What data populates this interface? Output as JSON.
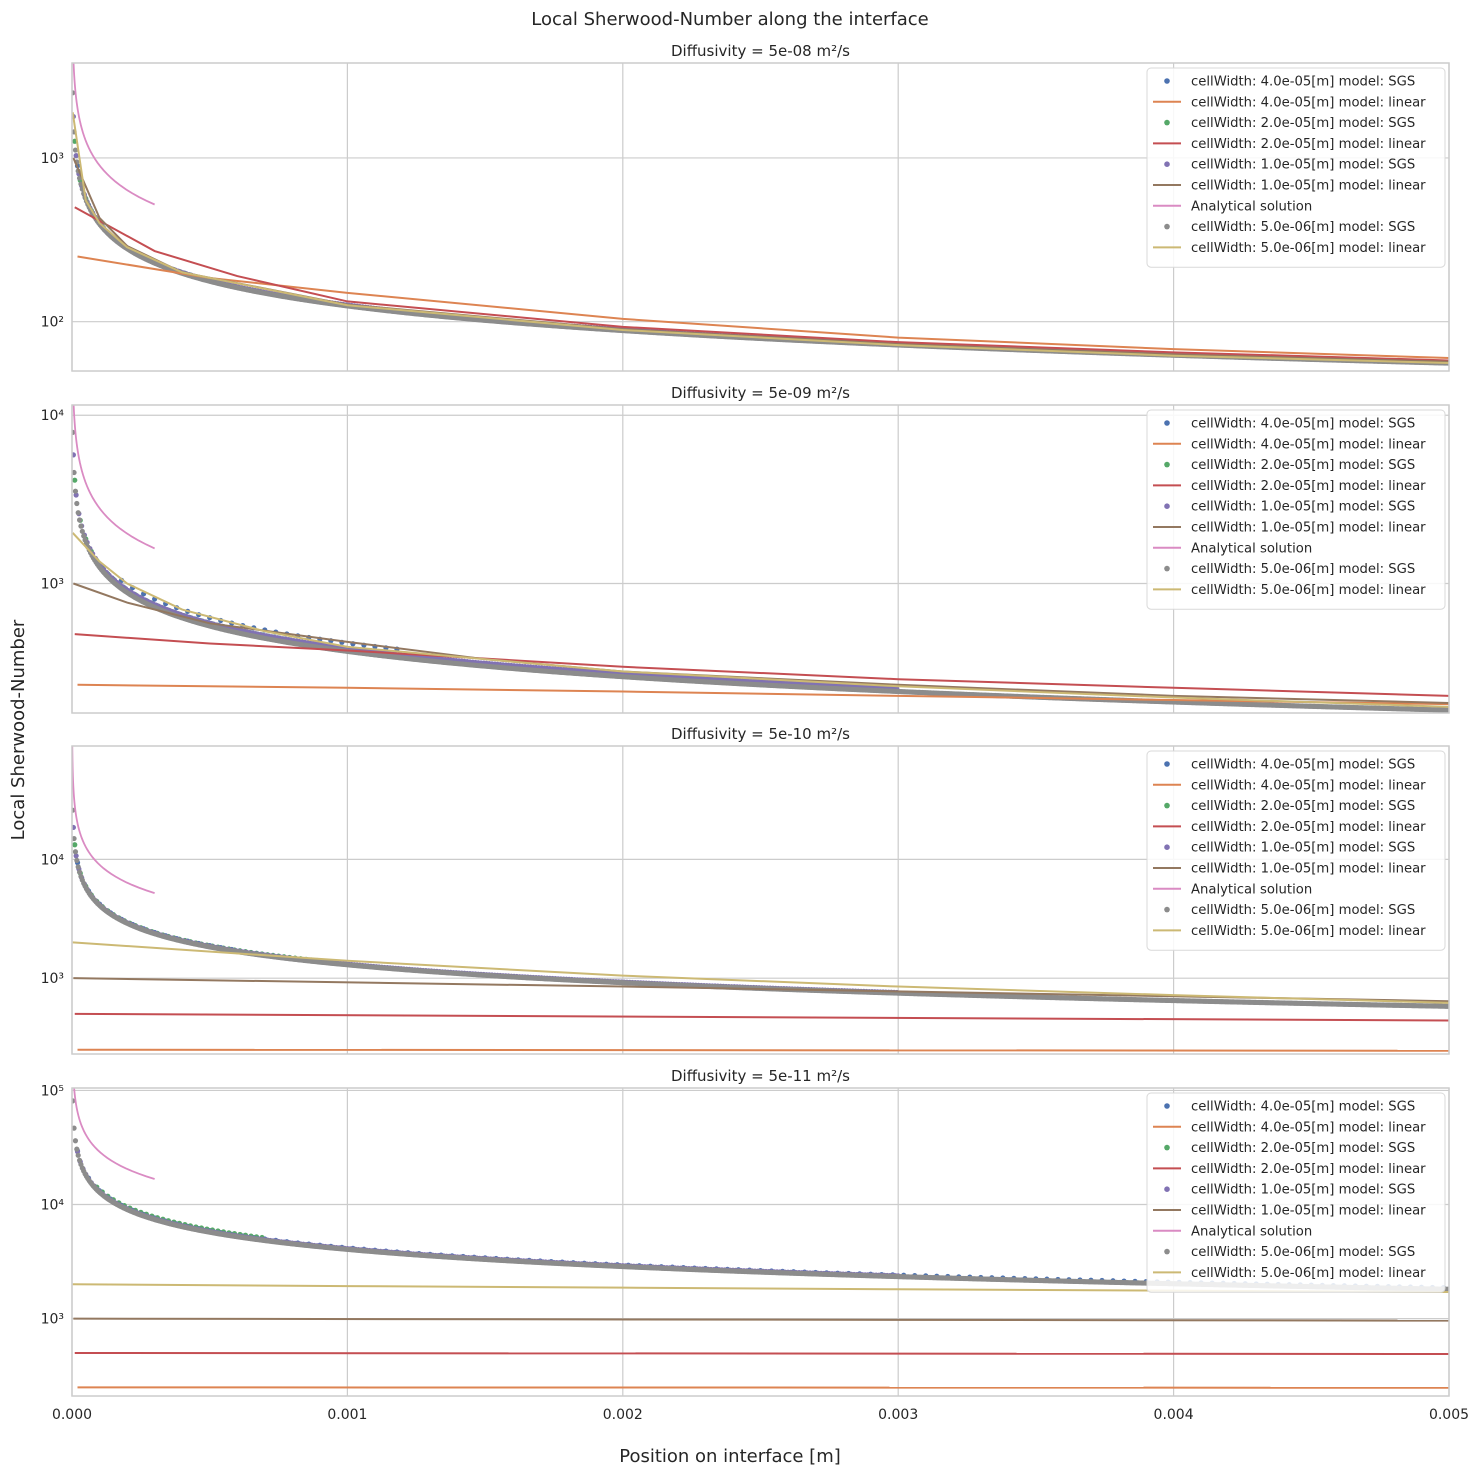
{
  "figure": {
    "title": "Local Sherwood-Number along the interface",
    "xlabel": "Position on interface [m]",
    "ylabel": "Local Sherwood-Number"
  },
  "colors": {
    "blue": "#4c72b0",
    "orange": "#dd8452",
    "green": "#55a868",
    "red": "#c44e52",
    "purple": "#8172b3",
    "brown": "#937860",
    "pink": "#da8bc3",
    "gray": "#8c8c8c",
    "olive": "#ccb974",
    "grid": "#cccccc",
    "axes": "#cccccc"
  },
  "legend_entries": [
    {
      "label": "cellWidth: 4.0e-05[m] model: SGS",
      "kind": "marker",
      "color": "#4c72b0"
    },
    {
      "label": "cellWidth: 4.0e-05[m] model: linear",
      "kind": "line",
      "color": "#dd8452"
    },
    {
      "label": "cellWidth: 2.0e-05[m] model: SGS",
      "kind": "marker",
      "color": "#55a868"
    },
    {
      "label": "cellWidth: 2.0e-05[m] model: linear",
      "kind": "line",
      "color": "#c44e52"
    },
    {
      "label": "cellWidth: 1.0e-05[m] model: SGS",
      "kind": "marker",
      "color": "#8172b3"
    },
    {
      "label": "cellWidth: 1.0e-05[m] model: linear",
      "kind": "line",
      "color": "#937860"
    },
    {
      "label": "Analytical solution",
      "kind": "line",
      "color": "#da8bc3"
    },
    {
      "label": "cellWidth: 5.0e-06[m] model: SGS",
      "kind": "marker",
      "color": "#8c8c8c"
    },
    {
      "label": "cellWidth: 5.0e-06[m] model: linear",
      "kind": "line",
      "color": "#ccb974"
    }
  ],
  "x_ticks": [
    {
      "value": 0.0,
      "label": "0.000"
    },
    {
      "value": 0.001,
      "label": "0.001"
    },
    {
      "value": 0.002,
      "label": "0.002"
    },
    {
      "value": 0.003,
      "label": "0.003"
    },
    {
      "value": 0.004,
      "label": "0.004"
    },
    {
      "value": 0.005,
      "label": "0.005"
    }
  ],
  "chart_data": [
    {
      "type": "line",
      "title": "Diffusivity = 5e-08 m²/s",
      "xlim": [
        0,
        0.005
      ],
      "ylim": [
        50,
        3800
      ],
      "yscale": "log",
      "y_ticks": [
        {
          "value": 100,
          "label": "10²"
        },
        {
          "value": 1000,
          "label": "10³"
        }
      ],
      "legend": "top-right",
      "analytic": {
        "k": 9.0,
        "xmin": 5e-07,
        "xmax": 0.0003
      },
      "markers": [
        {
          "name": "cellWidth: 4.0e-05[m] model: SGS",
          "color": "#4c72b0",
          "k": 4.0,
          "xmin": 2e-05,
          "step": 4e-05,
          "xmax": 0.0003
        },
        {
          "name": "cellWidth: 2.0e-05[m] model: SGS",
          "color": "#55a868",
          "k": 4.0,
          "xmin": 1e-05,
          "step": 2e-05,
          "xmax": 0.0006
        },
        {
          "name": "cellWidth: 1.0e-05[m] model: SGS",
          "color": "#8172b3",
          "k": 4.0,
          "xmin": 5e-06,
          "step": 1e-05,
          "xmax": 0.003
        },
        {
          "name": "cellWidth: 5.0e-06[m] model: SGS",
          "color": "#8c8c8c",
          "k": 3.95,
          "xmin": 2.5e-06,
          "step": 5e-06,
          "xmax": 0.005
        }
      ],
      "lines": [
        {
          "name": "cellWidth: 4.0e-05[m] model: linear",
          "color": "#dd8452",
          "x": [
            2e-05,
            0.0005,
            0.001,
            0.002,
            0.003,
            0.004,
            0.005
          ],
          "y": [
            250,
            185,
            150,
            104,
            80,
            68,
            60
          ]
        },
        {
          "name": "cellWidth: 2.0e-05[m] model: linear",
          "color": "#c44e52",
          "x": [
            1e-05,
            0.0003,
            0.0006,
            0.001,
            0.002,
            0.003,
            0.004,
            0.005
          ],
          "y": [
            500,
            270,
            190,
            133,
            93,
            75,
            65,
            58
          ]
        },
        {
          "name": "cellWidth: 1.0e-05[m] model: linear",
          "color": "#937860",
          "x": [
            5e-06,
            0.0001,
            0.0002,
            0.0004,
            0.001,
            0.002,
            0.003,
            0.004,
            0.005
          ],
          "y": [
            1000,
            430,
            290,
            200,
            127,
            90,
            73,
            63,
            57
          ]
        },
        {
          "name": "cellWidth: 5.0e-06[m] model: linear",
          "color": "#ccb974",
          "x": [
            2.5e-06,
            5e-05,
            0.0001,
            0.0002,
            0.0004,
            0.001,
            0.002,
            0.003,
            0.004,
            0.005
          ],
          "y": [
            1900,
            550,
            400,
            285,
            200,
            126,
            89,
            72,
            62,
            56
          ]
        }
      ]
    },
    {
      "type": "line",
      "title": "Diffusivity = 5e-09 m²/s",
      "xlim": [
        0,
        0.005
      ],
      "ylim": [
        170,
        11500
      ],
      "yscale": "log",
      "y_ticks": [
        {
          "value": 1000,
          "label": "10³"
        },
        {
          "value": 10000,
          "label": "10⁴"
        }
      ],
      "legend": "top-right",
      "analytic": {
        "k": 28.0,
        "xmin": 5e-07,
        "xmax": 0.0003
      },
      "markers": [
        {
          "name": "cellWidth: 4.0e-05[m] model: SGS",
          "color": "#4c72b0",
          "k": 14.0,
          "xmin": 0.00018,
          "step": 4e-05,
          "xmax": 0.0012
        },
        {
          "name": "cellWidth: 2.0e-05[m] model: SGS",
          "color": "#55a868",
          "k": 13.0,
          "xmin": 1e-05,
          "step": 2e-05,
          "xmax": 0.0008
        },
        {
          "name": "cellWidth: 1.0e-05[m] model: SGS",
          "color": "#8172b3",
          "k": 13.0,
          "xmin": 5e-06,
          "step": 1e-05,
          "xmax": 0.003
        },
        {
          "name": "cellWidth: 5.0e-06[m] model: SGS",
          "color": "#8c8c8c",
          "k": 12.5,
          "xmin": 2.5e-06,
          "step": 5e-06,
          "xmax": 0.005
        }
      ],
      "lines": [
        {
          "name": "cellWidth: 4.0e-05[m] model: linear",
          "color": "#dd8452",
          "x": [
            2e-05,
            0.001,
            0.002,
            0.003,
            0.004,
            0.005
          ],
          "y": [
            250,
            240,
            228,
            215,
            203,
            192
          ]
        },
        {
          "name": "cellWidth: 2.0e-05[m] model: linear",
          "color": "#c44e52",
          "x": [
            1e-05,
            0.0005,
            0.001,
            0.002,
            0.003,
            0.004,
            0.005
          ],
          "y": [
            500,
            440,
            400,
            320,
            270,
            240,
            215
          ]
        },
        {
          "name": "cellWidth: 1.0e-05[m] model: linear",
          "color": "#937860",
          "x": [
            5e-06,
            0.0002,
            0.0005,
            0.001,
            0.0015,
            0.002,
            0.003,
            0.004,
            0.005
          ],
          "y": [
            1000,
            770,
            580,
            450,
            355,
            300,
            250,
            215,
            195
          ]
        },
        {
          "name": "cellWidth: 5.0e-06[m] model: linear",
          "color": "#ccb974",
          "x": [
            2.5e-06,
            0.0001,
            0.0002,
            0.0004,
            0.0007,
            0.001,
            0.002,
            0.003,
            0.004,
            0.005
          ],
          "y": [
            2000,
            1350,
            1000,
            700,
            520,
            420,
            300,
            245,
            210,
            185
          ]
        }
      ]
    },
    {
      "type": "line",
      "title": "Diffusivity = 5e-10 m²/s",
      "xlim": [
        0,
        0.005
      ],
      "ylim": [
        230,
        90000
      ],
      "yscale": "log",
      "y_ticks": [
        {
          "value": 1000,
          "label": "10³"
        },
        {
          "value": 10000,
          "label": "10⁴"
        }
      ],
      "legend": "top-right",
      "analytic": {
        "k": 90.0,
        "xmin": 5e-07,
        "xmax": 0.0003
      },
      "markers": [
        {
          "name": "cellWidth: 4.0e-05[m] model: SGS",
          "color": "#4c72b0",
          "k": 42.0,
          "xmin": 2e-05,
          "step": 4e-05,
          "xmax": 0.0006
        },
        {
          "name": "cellWidth: 2.0e-05[m] model: SGS",
          "color": "#55a868",
          "k": 42.0,
          "xmin": 1e-05,
          "step": 2e-05,
          "xmax": 0.0009
        },
        {
          "name": "cellWidth: 1.0e-05[m] model: SGS",
          "color": "#8172b3",
          "k": 41.5,
          "xmin": 5e-06,
          "step": 1e-05,
          "xmax": 0.003
        },
        {
          "name": "cellWidth: 5.0e-06[m] model: SGS",
          "color": "#8c8c8c",
          "k": 41.0,
          "xmin": 2.5e-06,
          "step": 5e-06,
          "xmax": 0.005
        }
      ],
      "lines": [
        {
          "name": "cellWidth: 4.0e-05[m] model: linear",
          "color": "#dd8452",
          "x": [
            2e-05,
            0.005
          ],
          "y": [
            250,
            245
          ]
        },
        {
          "name": "cellWidth: 2.0e-05[m] model: linear",
          "color": "#c44e52",
          "x": [
            1e-05,
            0.005
          ],
          "y": [
            500,
            440
          ]
        },
        {
          "name": "cellWidth: 1.0e-05[m] model: linear",
          "color": "#937860",
          "x": [
            5e-06,
            0.002,
            0.005
          ],
          "y": [
            1000,
            850,
            640
          ]
        },
        {
          "name": "cellWidth: 5.0e-06[m] model: linear",
          "color": "#ccb974",
          "x": [
            2.5e-06,
            0.001,
            0.002,
            0.003,
            0.004,
            0.005
          ],
          "y": [
            2000,
            1400,
            1050,
            850,
            720,
            620
          ]
        }
      ]
    },
    {
      "type": "line",
      "title": "Diffusivity = 5e-11 m²/s",
      "xlim": [
        0,
        0.005
      ],
      "ylim": [
        210,
        105000
      ],
      "yscale": "log",
      "y_ticks": [
        {
          "value": 1000,
          "label": "10³"
        },
        {
          "value": 10000,
          "label": "10⁴"
        },
        {
          "value": 100000,
          "label": "10⁵"
        }
      ],
      "legend": "top-right",
      "analytic": {
        "k": 290.0,
        "xmin": 5e-07,
        "xmax": 0.0003
      },
      "markers": [
        {
          "name": "cellWidth: 4.0e-05[m] model: SGS",
          "color": "#4c72b0",
          "k": 132.0,
          "xmin": 2e-05,
          "step": 4e-05,
          "xmax": 0.005
        },
        {
          "name": "cellWidth: 2.0e-05[m] model: SGS",
          "color": "#55a868",
          "k": 135.0,
          "xmin": 9e-05,
          "step": 2e-05,
          "xmax": 0.0007
        },
        {
          "name": "cellWidth: 1.0e-05[m] model: SGS",
          "color": "#8172b3",
          "k": 130.0,
          "xmin": 2e-05,
          "step": 1e-05,
          "xmax": 0.003
        },
        {
          "name": "cellWidth: 5.0e-06[m] model: SGS",
          "color": "#8c8c8c",
          "k": 128.0,
          "xmin": 2.5e-06,
          "step": 5e-06,
          "xmax": 0.005
        }
      ],
      "lines": [
        {
          "name": "cellWidth: 4.0e-05[m] model: linear",
          "color": "#dd8452",
          "x": [
            2e-05,
            0.005
          ],
          "y": [
            250,
            248
          ]
        },
        {
          "name": "cellWidth: 2.0e-05[m] model: linear",
          "color": "#c44e52",
          "x": [
            1e-05,
            0.005
          ],
          "y": [
            500,
            490
          ]
        },
        {
          "name": "cellWidth: 1.0e-05[m] model: linear",
          "color": "#937860",
          "x": [
            5e-06,
            0.005
          ],
          "y": [
            1000,
            960
          ]
        },
        {
          "name": "cellWidth: 5.0e-06[m] model: linear",
          "color": "#ccb974",
          "x": [
            2.5e-06,
            0.001,
            0.002,
            0.003,
            0.004,
            0.005
          ],
          "y": [
            2000,
            1930,
            1870,
            1810,
            1760,
            1710
          ]
        }
      ]
    }
  ]
}
